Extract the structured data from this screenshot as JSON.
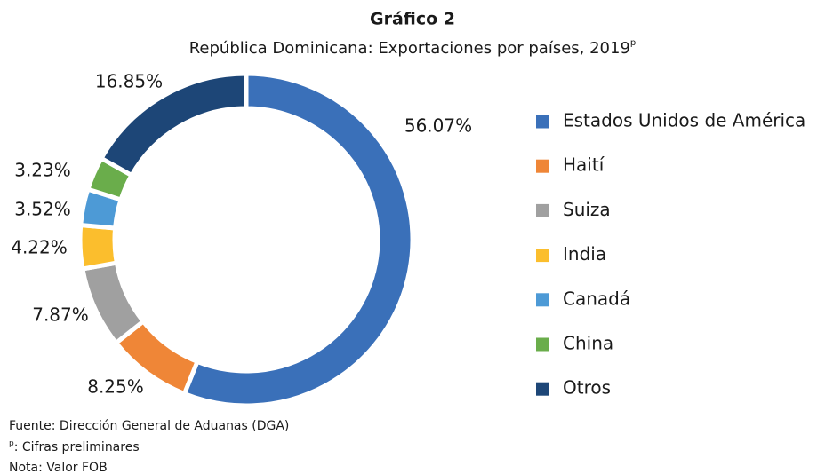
{
  "chart_data": {
    "type": "donut",
    "title": "Gráfico 2",
    "subtitle": "República Dominicana: Exportaciones por países, 2019",
    "subtitle_mark": "p",
    "categories": [
      "Estados Unidos de América",
      "Haití",
      "Suiza",
      "India",
      "Canadá",
      "China",
      "Otros"
    ],
    "values": [
      56.07,
      8.25,
      7.87,
      4.22,
      3.52,
      3.23,
      16.85
    ],
    "value_labels": [
      "56.07%",
      "8.25%",
      "7.87%",
      "4.22%",
      "3.52%",
      "3.23%",
      "16.85%"
    ],
    "colors": [
      "#3a70b9",
      "#ef8637",
      "#a0a0a0",
      "#fbbe2d",
      "#4d9ad6",
      "#6aad4b",
      "#1d4677"
    ],
    "legend": "right",
    "source": "Fuente: Dirección General de Aduanas (DGA)",
    "preliminary_mark": "p",
    "preliminary_note": ": Cifras preliminares",
    "note": "Nota: Valor FOB"
  }
}
